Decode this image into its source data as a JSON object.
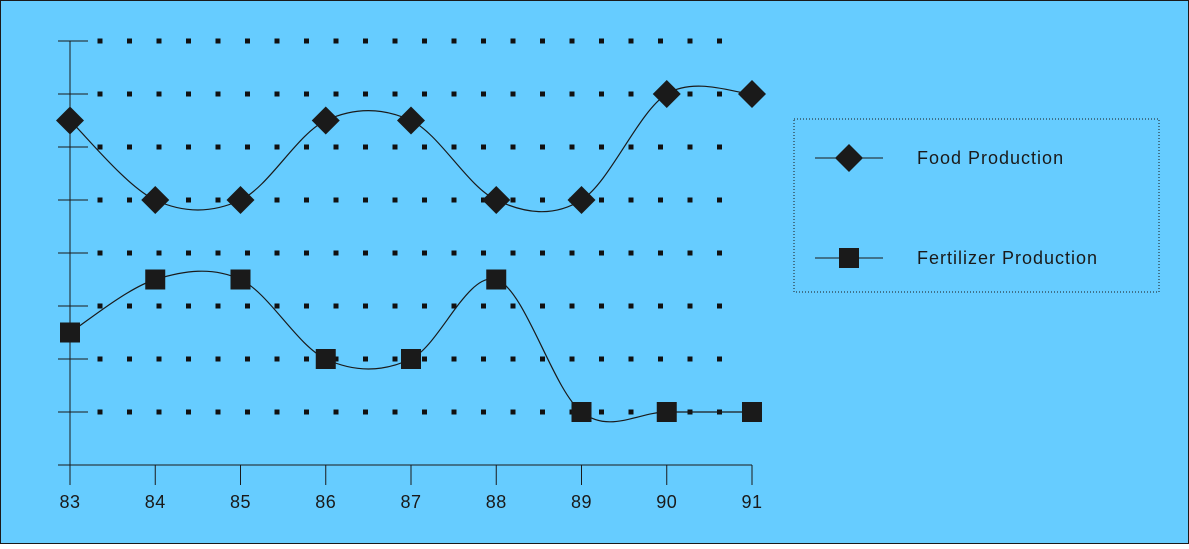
{
  "chart_data": {
    "type": "line",
    "x": [
      "83",
      "84",
      "85",
      "86",
      "87",
      "88",
      "89",
      "90",
      "91"
    ],
    "ylim": [
      0,
      8
    ],
    "y_ticks": [
      0,
      1,
      2,
      3,
      4,
      5,
      6,
      7,
      8
    ],
    "grid": true,
    "grid_style": "dotted",
    "smooth": true,
    "legend_position": "right",
    "series": [
      {
        "name": "Food Production",
        "marker": "diamond",
        "values": [
          6.5,
          5.0,
          5.0,
          6.5,
          6.5,
          5.0,
          5.0,
          7.0,
          7.0
        ]
      },
      {
        "name": "Fertilizer Production",
        "marker": "square",
        "values": [
          2.5,
          3.5,
          3.5,
          2.0,
          2.0,
          3.5,
          1.0,
          1.0,
          1.0
        ]
      }
    ]
  },
  "colors": {
    "background": "#66ccff",
    "border": "#1a1a1a",
    "axis": "#1a1a1a",
    "grid_dot": "#111111",
    "line": "#1a1a1a",
    "marker": "#1a1a1a",
    "legend_border": "#1a1a1a"
  }
}
